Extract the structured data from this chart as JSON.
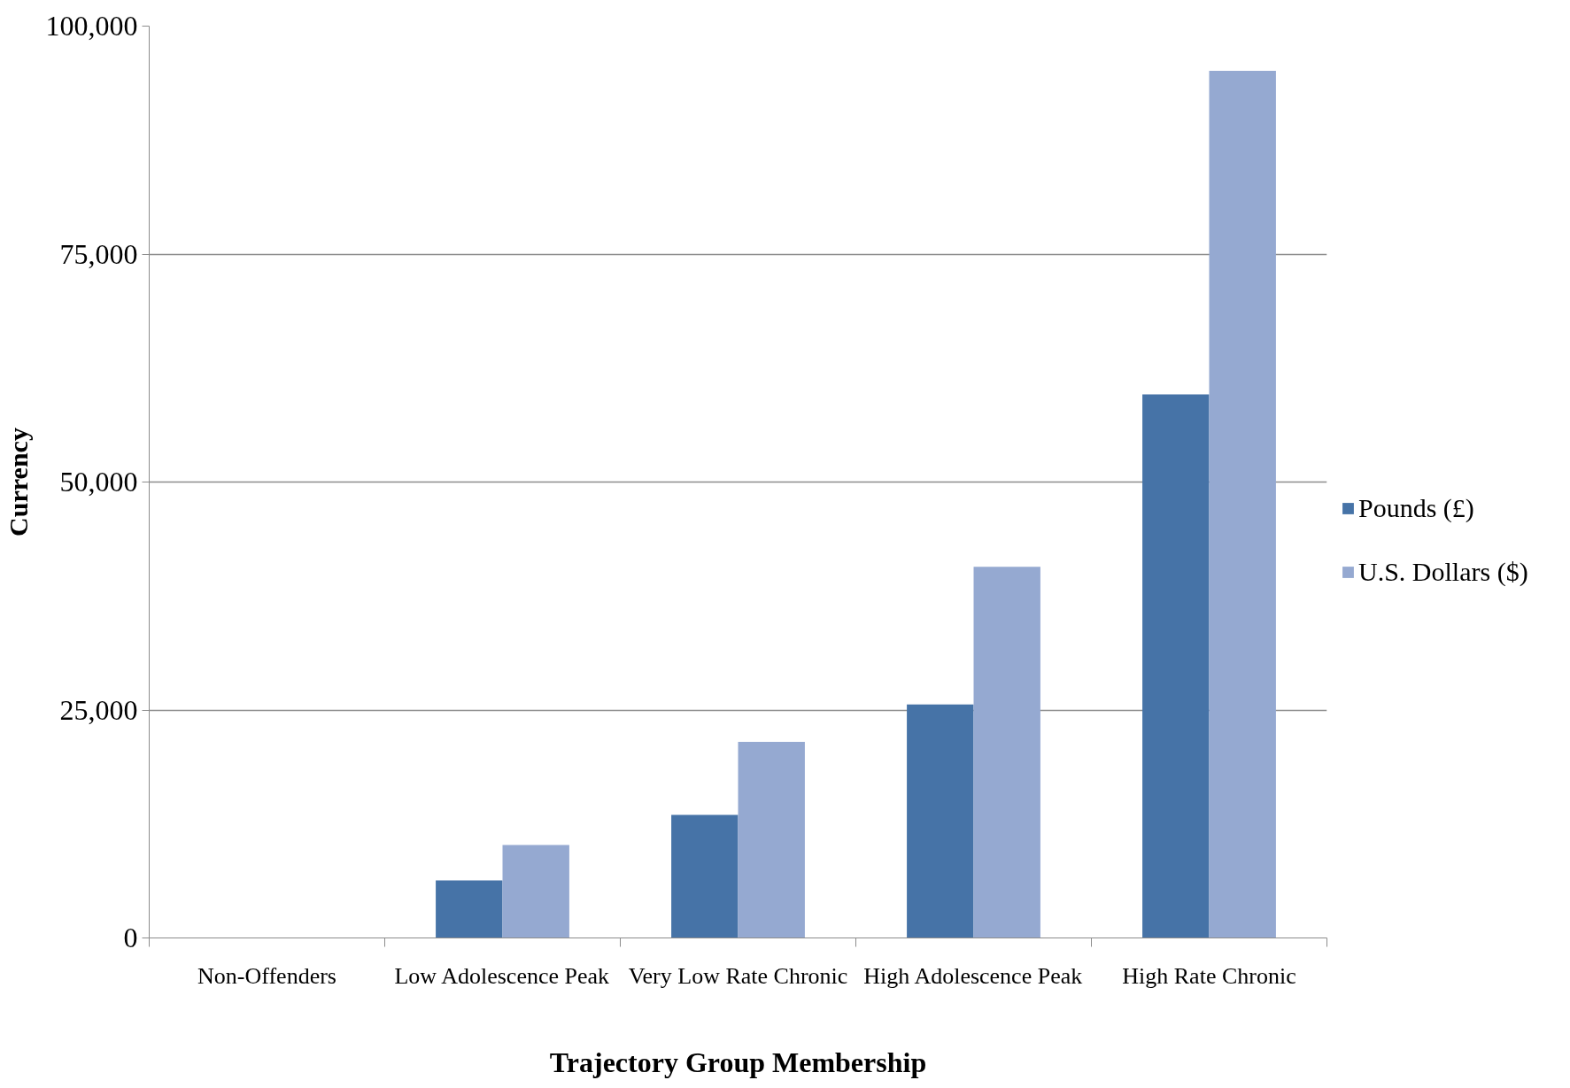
{
  "chart_data": {
    "type": "bar",
    "xlabel": "Trajectory Group Membership",
    "ylabel": "Currency",
    "categories": [
      "Non-Offenders",
      "Low Adolescence Peak",
      "Very Low Rate Chronic",
      "High Adolescence Peak",
      "High Rate Chronic"
    ],
    "series": [
      {
        "name": "Pounds (£)",
        "color": "#4673a7",
        "values": [
          0,
          6300,
          13500,
          25600,
          59600
        ]
      },
      {
        "name": "U.S. Dollars ($)",
        "color": "#95a9d1",
        "values": [
          0,
          10200,
          21500,
          40700,
          95100
        ]
      }
    ],
    "ylim": [
      0,
      100000
    ],
    "yticks": [
      0,
      {
        "value": 25000,
        "label": "25,000"
      },
      {
        "value": 50000,
        "label": "50,000"
      },
      {
        "value": 75000,
        "label": "75,000"
      },
      {
        "value": 100000,
        "label": "100,000"
      }
    ],
    "grid": "y",
    "legend": "right"
  }
}
